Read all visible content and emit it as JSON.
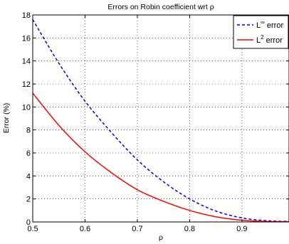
{
  "chart_data": {
    "type": "line",
    "title": "Errors on Robin coefficient wrt ρ",
    "xlabel": "ρ",
    "ylabel": "Error (%)",
    "xlim": [
      0.5,
      0.99
    ],
    "ylim": [
      0,
      18
    ],
    "xticks": [
      0.5,
      0.6,
      0.7,
      0.8,
      0.9
    ],
    "xtick_labels": [
      "0.5",
      "0.6",
      "0.7",
      "0.8",
      "0.9"
    ],
    "yticks": [
      0,
      2,
      4,
      6,
      8,
      10,
      12,
      14,
      16,
      18
    ],
    "ytick_labels": [
      "0",
      "2",
      "4",
      "6",
      "8",
      "10",
      "12",
      "14",
      "16",
      "18"
    ],
    "grid": true,
    "legend_position": "top-right",
    "x": [
      0.5,
      0.55,
      0.6,
      0.65,
      0.7,
      0.75,
      0.8,
      0.85,
      0.9,
      0.95,
      0.99
    ],
    "series": [
      {
        "name": "L∞ error",
        "legend_base": "L",
        "legend_sup": "∞",
        "legend_rest": " error",
        "color": "#0000ff",
        "style": "dashed",
        "values": [
          17.6,
          13.8,
          10.5,
          7.8,
          5.4,
          3.5,
          2.0,
          0.95,
          0.35,
          0.1,
          0.05
        ]
      },
      {
        "name": "L2 error",
        "legend_base": "L",
        "legend_sup": "2",
        "legend_rest": " error",
        "color": "#ff0000",
        "style": "solid",
        "values": [
          11.2,
          8.4,
          6.1,
          4.3,
          2.8,
          1.8,
          1.0,
          0.45,
          0.15,
          0.04,
          0.02
        ]
      }
    ]
  }
}
